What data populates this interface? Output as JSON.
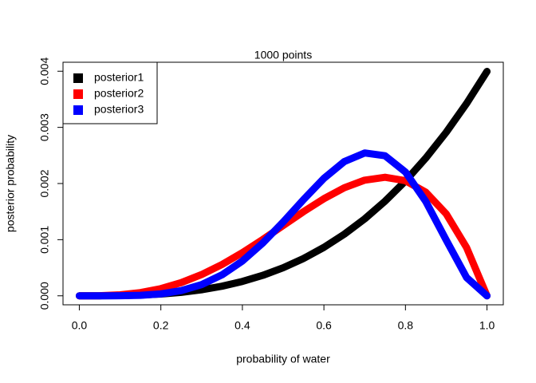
{
  "chart_data": {
    "type": "line",
    "title": "1000 points",
    "x_label": "probability of water",
    "y_label": "posterior probability",
    "x": [
      0,
      0.05,
      0.1,
      0.15,
      0.2,
      0.25,
      0.3,
      0.35,
      0.4,
      0.45,
      0.5,
      0.55,
      0.6,
      0.65,
      0.7,
      0.75,
      0.8,
      0.85,
      0.9,
      0.95,
      1
    ],
    "series": [
      {
        "name": "posterior1",
        "color": "#000000",
        "values": [
          0,
          5e-07,
          4e-06,
          1.35e-05,
          3.2e-05,
          6.24e-05,
          0.0001079,
          0.0001713,
          0.0002557,
          0.0003641,
          0.0004995,
          0.0006648,
          0.0008631,
          0.0010974,
          0.0013706,
          0.0016858,
          0.002046,
          0.002454,
          0.002913,
          0.003426,
          0.003996
        ]
      },
      {
        "name": "posterior2",
        "color": "#ff0000",
        "values": [
          0,
          2.4e-06,
          1.8e-05,
          5.74e-05,
          0.000128,
          0.0002346,
          0.0003784,
          0.000558,
          0.0007688,
          0.0010034,
          0.0012513,
          0.0014989,
          0.0017297,
          0.0019243,
          0.00206,
          0.0021115,
          0.00205,
          0.0018442,
          0.0014595,
          0.0008582,
          0
        ]
      },
      {
        "name": "posterior3",
        "color": "#0000ff",
        "values": [
          0,
          5e-08,
          1.4e-06,
          9.2e-06,
          3.44e-05,
          9.24e-05,
          0.0002003,
          0.0003732,
          0.00062,
          0.0009388,
          0.0013139,
          0.001714,
          0.0020924,
          0.0023904,
          0.002544,
          0.0024944,
          0.0022044,
          0.001679,
          0.0009931,
          0.0003253,
          0
        ]
      }
    ],
    "xlim": [
      -0.04,
      1.04
    ],
    "ylim": [
      -0.00016,
      0.00416
    ],
    "xticks": [
      {
        "value": 0,
        "label": "0.0"
      },
      {
        "value": 0.2,
        "label": "0.2"
      },
      {
        "value": 0.4,
        "label": "0.4"
      },
      {
        "value": 0.6,
        "label": "0.6"
      },
      {
        "value": 0.8,
        "label": "0.8"
      },
      {
        "value": 1,
        "label": "1.0"
      }
    ],
    "yticks": [
      {
        "value": 0,
        "label": "0.000"
      },
      {
        "value": 0.001,
        "label": "0.001"
      },
      {
        "value": 0.002,
        "label": "0.002"
      },
      {
        "value": 0.003,
        "label": "0.003"
      },
      {
        "value": 0.004,
        "label": "0.004"
      }
    ],
    "legend": "top-left"
  }
}
